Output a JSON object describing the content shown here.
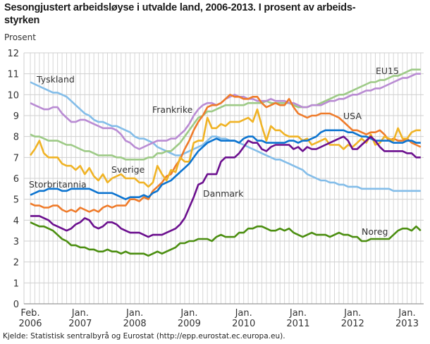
{
  "chart_data": {
    "type": "line",
    "title": "Sesongjustert arbeidsløyse i utvalde land, 2006-2013. I prosent av arbeids-styrken",
    "title_lines": [
      "Sesongjustert arbeidsløyse i utvalde land, 2006-2013. I prosent av arbeids-",
      "styrken"
    ],
    "ylabel": "Prosent",
    "xlabel": "",
    "source": "Kjelde: Statistisk sentralbyrå og Eurostat  (http://epp.eurostat.ec.europa.eu).",
    "x_start": "2006-02",
    "x_end": "2013-04",
    "frequency": "monthly",
    "ylim": [
      0,
      12
    ],
    "yticks": [
      "0",
      "1",
      "2",
      "3",
      "4",
      "5",
      "6",
      "7",
      "8",
      "9",
      "10",
      "11",
      "12"
    ],
    "xticks": [
      {
        "month": "Feb.",
        "year": "2006",
        "date": "2006-02"
      },
      {
        "month": "Jan.",
        "year": "2007",
        "date": "2007-01"
      },
      {
        "month": "Jan.",
        "year": "2008",
        "date": "2008-01"
      },
      {
        "month": "Jan.",
        "year": "2009",
        "date": "2009-01"
      },
      {
        "month": "Jan.",
        "year": "2010",
        "date": "2010-01"
      },
      {
        "month": "Jan.",
        "year": "2011",
        "date": "2011-01"
      },
      {
        "month": "Jan.",
        "year": "2012",
        "date": "2012-01"
      },
      {
        "month": "Jan.",
        "year": "2013",
        "date": "2013-01"
      }
    ],
    "grid": true,
    "legend": "inline labels",
    "series": [
      {
        "name": "Tyskland",
        "color": "#83bde9",
        "values": [
          10.6,
          10.5,
          10.4,
          10.3,
          10.2,
          10.1,
          10.1,
          10.0,
          9.9,
          9.7,
          9.5,
          9.3,
          9.1,
          9.0,
          8.8,
          8.7,
          8.7,
          8.6,
          8.5,
          8.5,
          8.4,
          8.3,
          8.2,
          8.0,
          7.9,
          7.9,
          7.8,
          7.7,
          7.5,
          7.4,
          7.3,
          7.2,
          7.1,
          7.1,
          7.2,
          7.3,
          7.4,
          7.5,
          7.6,
          7.8,
          8.0,
          8.0,
          7.9,
          7.9,
          7.8,
          7.8,
          7.7,
          7.6,
          7.5,
          7.4,
          7.3,
          7.2,
          7.1,
          7.0,
          6.9,
          6.9,
          6.8,
          6.7,
          6.6,
          6.5,
          6.4,
          6.2,
          6.1,
          6.0,
          5.9,
          5.9,
          5.8,
          5.8,
          5.7,
          5.7,
          5.6,
          5.6,
          5.6,
          5.5,
          5.5,
          5.5,
          5.5,
          5.5,
          5.5,
          5.5,
          5.4,
          5.4,
          5.4,
          5.4,
          5.4,
          5.4,
          5.4
        ]
      },
      {
        "name": "EU15",
        "color": "#9dca86",
        "values": [
          8.1,
          8.0,
          8.0,
          7.9,
          7.8,
          7.8,
          7.8,
          7.7,
          7.6,
          7.6,
          7.5,
          7.4,
          7.3,
          7.3,
          7.2,
          7.1,
          7.1,
          7.1,
          7.1,
          7.0,
          7.0,
          6.9,
          6.9,
          6.9,
          6.9,
          6.9,
          7.0,
          7.0,
          7.2,
          7.2,
          7.3,
          7.3,
          7.5,
          7.7,
          8.0,
          8.3,
          8.6,
          8.9,
          9.0,
          9.2,
          9.2,
          9.3,
          9.4,
          9.5,
          9.5,
          9.5,
          9.5,
          9.5,
          9.6,
          9.6,
          9.6,
          9.6,
          9.7,
          9.6,
          9.6,
          9.6,
          9.6,
          9.6,
          9.5,
          9.4,
          9.4,
          9.4,
          9.5,
          9.5,
          9.6,
          9.7,
          9.8,
          9.9,
          10.0,
          10.0,
          10.1,
          10.2,
          10.3,
          10.4,
          10.5,
          10.6,
          10.6,
          10.7,
          10.7,
          10.8,
          10.9,
          10.9,
          11.0,
          11.1,
          11.2,
          11.2,
          11.2
        ]
      },
      {
        "name": "Frankrike",
        "color": "#b98bd3",
        "values": [
          9.6,
          9.5,
          9.4,
          9.3,
          9.3,
          9.4,
          9.4,
          9.1,
          8.9,
          8.7,
          8.7,
          8.8,
          8.8,
          8.7,
          8.6,
          8.5,
          8.4,
          8.4,
          8.4,
          8.3,
          8.1,
          7.8,
          7.7,
          7.5,
          7.4,
          7.5,
          7.6,
          7.7,
          7.8,
          7.8,
          7.8,
          7.9,
          7.9,
          8.1,
          8.3,
          8.6,
          9.0,
          9.3,
          9.5,
          9.6,
          9.6,
          9.5,
          9.6,
          9.8,
          9.9,
          10.0,
          9.9,
          9.9,
          9.8,
          9.8,
          9.7,
          9.7,
          9.7,
          9.8,
          9.7,
          9.7,
          9.7,
          9.6,
          9.6,
          9.5,
          9.4,
          9.4,
          9.5,
          9.5,
          9.5,
          9.6,
          9.7,
          9.7,
          9.8,
          9.8,
          9.9,
          10.0,
          10.0,
          10.1,
          10.2,
          10.2,
          10.3,
          10.3,
          10.4,
          10.5,
          10.6,
          10.7,
          10.8,
          10.8,
          10.9,
          11.0,
          11.0
        ]
      },
      {
        "name": "USA",
        "color": "#ef7b2a",
        "values": [
          4.8,
          4.7,
          4.7,
          4.6,
          4.6,
          4.7,
          4.7,
          4.5,
          4.4,
          4.5,
          4.4,
          4.6,
          4.5,
          4.4,
          4.5,
          4.4,
          4.6,
          4.7,
          4.6,
          4.7,
          4.7,
          4.7,
          5.0,
          5.0,
          4.9,
          5.1,
          5.0,
          5.4,
          5.6,
          5.8,
          6.1,
          6.2,
          6.6,
          6.9,
          7.4,
          7.8,
          8.3,
          8.7,
          9.0,
          9.4,
          9.5,
          9.5,
          9.6,
          9.8,
          10.0,
          9.9,
          9.9,
          9.8,
          9.8,
          9.9,
          9.9,
          9.6,
          9.4,
          9.5,
          9.6,
          9.5,
          9.5,
          9.8,
          9.4,
          9.1,
          9.0,
          8.9,
          9.0,
          9.0,
          9.1,
          9.1,
          9.1,
          9.0,
          8.9,
          8.7,
          8.5,
          8.3,
          8.3,
          8.2,
          8.1,
          8.2,
          8.2,
          8.3,
          8.1,
          7.8,
          7.9,
          7.8,
          7.8,
          7.9,
          7.7,
          7.6,
          7.5
        ]
      },
      {
        "name": "Sverige",
        "color": "#f0b325",
        "values": [
          7.1,
          7.4,
          7.8,
          7.2,
          7.0,
          7.0,
          7.0,
          6.7,
          6.6,
          6.6,
          6.4,
          6.6,
          6.2,
          6.5,
          6.1,
          5.9,
          6.2,
          5.8,
          6.0,
          6.1,
          6.2,
          6.0,
          6.0,
          6.0,
          5.8,
          5.8,
          5.6,
          5.8,
          6.6,
          6.2,
          5.9,
          6.4,
          6.3,
          7.0,
          6.8,
          6.8,
          7.7,
          7.8,
          7.8,
          8.9,
          8.4,
          8.4,
          8.6,
          8.5,
          8.7,
          8.7,
          8.7,
          8.8,
          8.9,
          8.7,
          9.3,
          8.5,
          7.8,
          8.5,
          8.3,
          8.3,
          8.1,
          8.0,
          8.0,
          8.0,
          7.8,
          7.9,
          7.6,
          7.7,
          7.8,
          7.9,
          7.6,
          7.6,
          7.6,
          7.4,
          7.6,
          7.5,
          7.7,
          7.9,
          7.7,
          8.1,
          7.6,
          7.7,
          8.0,
          7.9,
          7.8,
          8.4,
          7.9,
          7.9,
          8.2,
          8.3,
          8.3
        ]
      },
      {
        "name": "Storbritannia",
        "color": "#0c74d0",
        "values": [
          5.2,
          5.3,
          5.4,
          5.4,
          5.5,
          5.5,
          5.5,
          5.4,
          5.4,
          5.5,
          5.5,
          5.5,
          5.5,
          5.5,
          5.4,
          5.3,
          5.3,
          5.3,
          5.3,
          5.2,
          5.1,
          5.0,
          5.1,
          5.1,
          5.1,
          5.2,
          5.1,
          5.3,
          5.4,
          5.7,
          5.8,
          5.9,
          6.1,
          6.3,
          6.5,
          6.7,
          7.0,
          7.3,
          7.5,
          7.7,
          7.8,
          7.9,
          7.8,
          7.8,
          7.8,
          7.8,
          7.7,
          7.9,
          8.0,
          8.0,
          7.8,
          7.8,
          7.7,
          7.7,
          7.7,
          7.7,
          7.7,
          7.8,
          7.8,
          7.7,
          7.8,
          7.8,
          7.9,
          8.0,
          8.2,
          8.3,
          8.3,
          8.3,
          8.3,
          8.3,
          8.2,
          8.2,
          8.1,
          8.0,
          8.0,
          7.9,
          7.8,
          7.8,
          7.8,
          7.8,
          7.7,
          7.7,
          7.7,
          7.8,
          7.8,
          7.7,
          7.7
        ]
      },
      {
        "name": "Danmark",
        "color": "#6b0f8e",
        "values": [
          4.2,
          4.2,
          4.2,
          4.1,
          4.0,
          3.8,
          3.7,
          3.6,
          3.5,
          3.6,
          3.8,
          3.9,
          4.1,
          4.0,
          3.7,
          3.6,
          3.7,
          3.9,
          3.9,
          3.8,
          3.6,
          3.5,
          3.4,
          3.4,
          3.4,
          3.3,
          3.2,
          3.3,
          3.3,
          3.3,
          3.4,
          3.5,
          3.6,
          3.8,
          4.1,
          4.6,
          5.1,
          5.7,
          5.8,
          6.2,
          6.2,
          6.2,
          6.8,
          7.0,
          7.0,
          7.0,
          7.2,
          7.5,
          7.8,
          7.7,
          7.7,
          7.4,
          7.3,
          7.5,
          7.6,
          7.6,
          7.6,
          7.6,
          7.4,
          7.5,
          7.3,
          7.5,
          7.4,
          7.4,
          7.5,
          7.6,
          7.7,
          7.8,
          7.9,
          8.0,
          7.8,
          7.4,
          7.4,
          7.6,
          7.8,
          8.0,
          7.8,
          7.5,
          7.3,
          7.3,
          7.3,
          7.3,
          7.3,
          7.2,
          7.2,
          7.0,
          7.0
        ]
      },
      {
        "name": "Noreg",
        "color": "#4b8e10",
        "values": [
          3.9,
          3.8,
          3.7,
          3.7,
          3.6,
          3.5,
          3.3,
          3.1,
          3.0,
          2.8,
          2.8,
          2.7,
          2.7,
          2.6,
          2.6,
          2.5,
          2.5,
          2.6,
          2.5,
          2.5,
          2.4,
          2.5,
          2.4,
          2.4,
          2.4,
          2.4,
          2.3,
          2.4,
          2.5,
          2.4,
          2.5,
          2.6,
          2.7,
          2.9,
          2.9,
          3.0,
          3.0,
          3.1,
          3.1,
          3.1,
          3.0,
          3.2,
          3.3,
          3.2,
          3.2,
          3.2,
          3.4,
          3.4,
          3.6,
          3.6,
          3.7,
          3.7,
          3.6,
          3.5,
          3.5,
          3.6,
          3.5,
          3.6,
          3.4,
          3.3,
          3.2,
          3.3,
          3.4,
          3.3,
          3.3,
          3.3,
          3.2,
          3.3,
          3.4,
          3.3,
          3.3,
          3.2,
          3.2,
          3.0,
          3.0,
          3.1,
          3.1,
          3.1,
          3.1,
          3.1,
          3.3,
          3.5,
          3.6,
          3.6,
          3.5,
          3.7,
          3.5
        ]
      }
    ]
  }
}
